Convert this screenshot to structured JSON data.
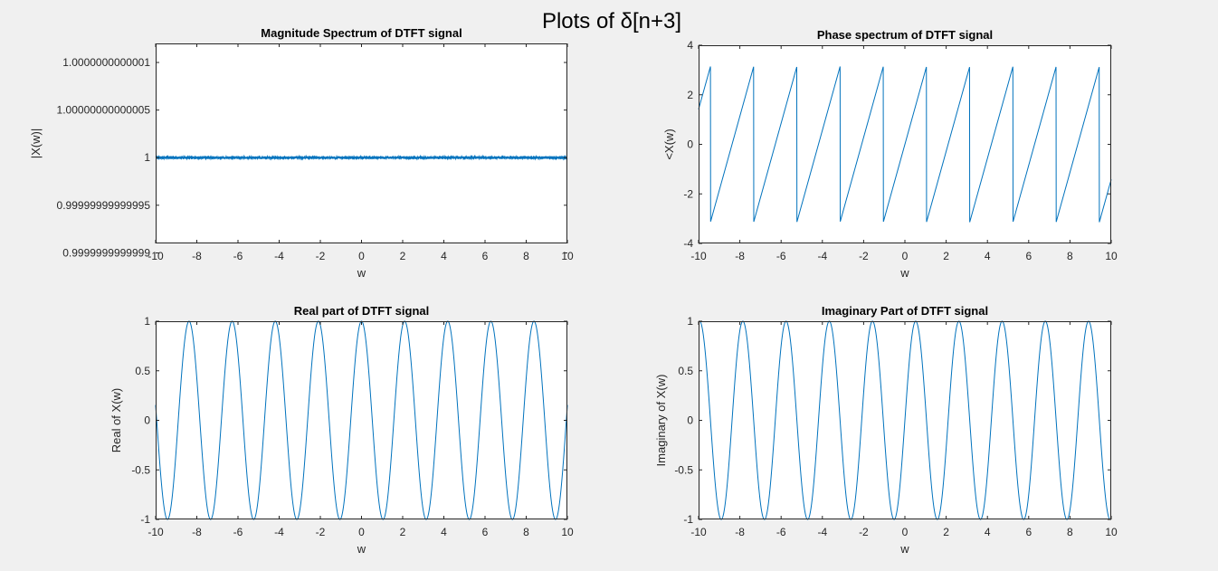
{
  "figure": {
    "super_title": "Plots of δ[n+3]",
    "background": "#f0f0f0",
    "line_color": "#0072bd"
  },
  "chart_data": [
    {
      "id": "magnitude",
      "type": "line",
      "title": "Magnitude Spectrum of DTFT signal",
      "xlabel": "w",
      "ylabel": "|X(w)|",
      "xlim": [
        -10,
        10
      ],
      "ylim": [
        0.99999999999991,
        1.00000000000012
      ],
      "xticks": [
        -10,
        -8,
        -6,
        -4,
        -2,
        0,
        2,
        4,
        6,
        8,
        10
      ],
      "yticks": [
        0.9999999999999,
        0.99999999999995,
        1,
        1.00000000000005,
        1.0000000000001
      ],
      "ytick_labels": [
        "0.9999999999999",
        "0.99999999999995",
        "1",
        "1.00000000000005",
        "1.0000000000001"
      ],
      "function": "abs(exp(j*3*w))",
      "series": [
        {
          "x_range": [
            -10,
            10
          ],
          "y": "constant 1"
        }
      ]
    },
    {
      "id": "phase",
      "type": "line",
      "title": "Phase spectrum of DTFT signal",
      "xlabel": "w",
      "ylabel": "<X(w)",
      "xlim": [
        -10,
        10
      ],
      "ylim": [
        -4,
        4
      ],
      "xticks": [
        -10,
        -8,
        -6,
        -4,
        -2,
        0,
        2,
        4,
        6,
        8,
        10
      ],
      "yticks": [
        -4,
        -2,
        0,
        2,
        4
      ],
      "ytick_labels": [
        "-4",
        "-2",
        "0",
        "2",
        "4"
      ],
      "function": "angle(exp(j*3*w))",
      "series": [
        {
          "x_range": [
            -10,
            10
          ],
          "y": "wrapped 3*w in (-pi, pi]"
        }
      ]
    },
    {
      "id": "real",
      "type": "line",
      "title": "Real part of DTFT signal",
      "xlabel": "w",
      "ylabel": "Real of X(w)",
      "xlim": [
        -10,
        10
      ],
      "ylim": [
        -1,
        1
      ],
      "xticks": [
        -10,
        -8,
        -6,
        -4,
        -2,
        0,
        2,
        4,
        6,
        8,
        10
      ],
      "yticks": [
        -1,
        -0.5,
        0,
        0.5,
        1
      ],
      "ytick_labels": [
        "-1",
        "-0.5",
        "0",
        "0.5",
        "1"
      ],
      "function": "cos(3*w)",
      "series": [
        {
          "x_range": [
            -10,
            10
          ],
          "y": "cos(3*w)"
        }
      ]
    },
    {
      "id": "imag",
      "type": "line",
      "title": "Imaginary Part of DTFT signal",
      "xlabel": "w",
      "ylabel": "Imaginary of X(w)",
      "xlim": [
        -10,
        10
      ],
      "ylim": [
        -1,
        1
      ],
      "xticks": [
        -10,
        -8,
        -6,
        -4,
        -2,
        0,
        2,
        4,
        6,
        8,
        10
      ],
      "yticks": [
        -1,
        -0.5,
        0,
        0.5,
        1
      ],
      "ytick_labels": [
        "-1",
        "-0.5",
        "0",
        "0.5",
        "1"
      ],
      "function": "sin(3*w)",
      "series": [
        {
          "x_range": [
            -10,
            10
          ],
          "y": "sin(3*w)"
        }
      ]
    }
  ]
}
